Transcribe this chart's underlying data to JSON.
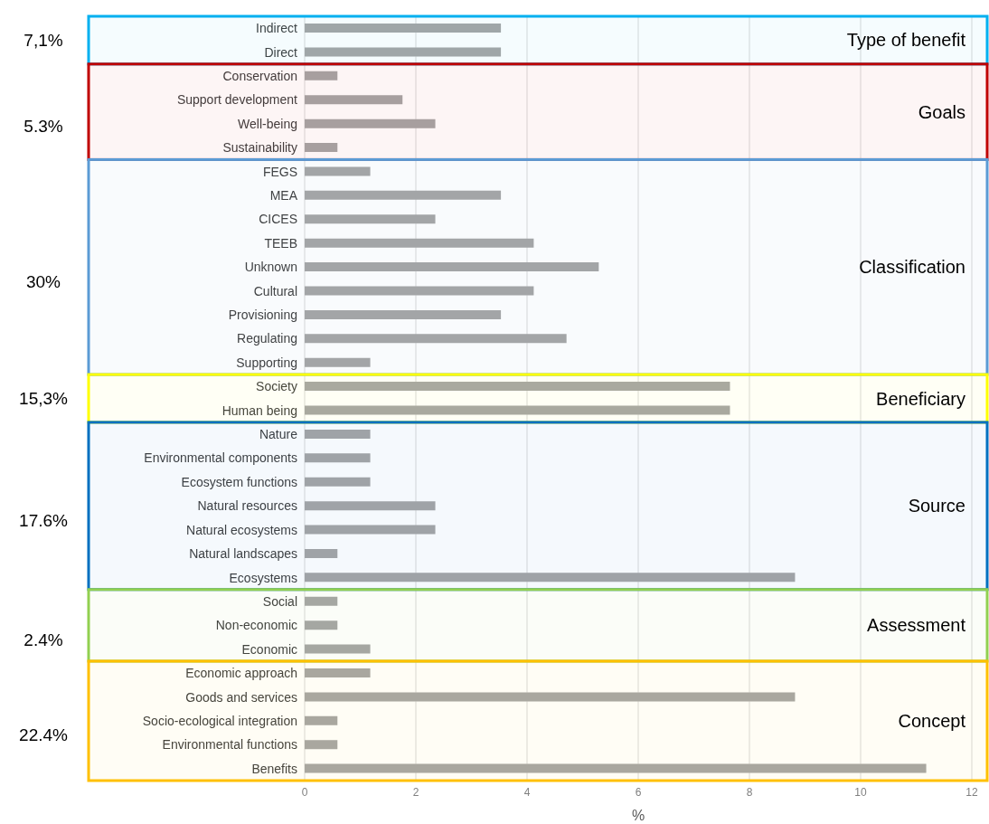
{
  "chart_data": {
    "type": "bar",
    "orientation": "horizontal",
    "xlabel": "%",
    "categories": [
      "Indirect",
      "Direct",
      "Conservation",
      "Support development",
      "Well-being",
      "Sustainability",
      "FEGS",
      "MEA",
      "CICES",
      "TEEB",
      "Unknown",
      "Cultural",
      "Provisioning",
      "Regulating",
      "Supporting",
      "Society",
      "Human being",
      "Nature",
      "Environmental components",
      "Ecosystem functions",
      "Natural resources",
      "Natural ecosystems",
      "Natural landscapes",
      "Ecosystems",
      "Social",
      "Non-economic",
      "Economic",
      "Economic approach",
      "Goods and services",
      "Socio-ecological integration",
      "Environmental functions",
      "Benefits"
    ],
    "values": [
      3.53,
      3.53,
      0.59,
      1.76,
      2.35,
      0.59,
      1.18,
      3.53,
      2.35,
      4.12,
      5.29,
      4.12,
      3.53,
      4.71,
      1.18,
      7.65,
      7.65,
      1.18,
      1.18,
      1.18,
      2.35,
      2.35,
      0.59,
      8.82,
      0.59,
      0.59,
      1.18,
      1.18,
      8.82,
      0.59,
      0.59,
      11.18
    ],
    "color": "#a6a6a6",
    "xlim": [
      0,
      12
    ],
    "xticks": [
      0,
      2,
      4,
      6,
      8,
      10,
      12
    ],
    "grid": "x",
    "legend": false,
    "bands": [
      {
        "axis": "y",
        "from": "Indirect",
        "to": "Direct",
        "label": "Type of benefit",
        "color": "#00b0f0"
      },
      {
        "axis": "y",
        "from": "Conservation",
        "to": "Sustainability",
        "label": "Goals",
        "color": "#c00000"
      },
      {
        "axis": "y",
        "from": "FEGS",
        "to": "Supporting",
        "label": "Classification",
        "color": "#5b9bd5"
      },
      {
        "axis": "y",
        "from": "Society",
        "to": "Human being",
        "label": "Beneficiary",
        "color": "#ffff00"
      },
      {
        "axis": "y",
        "from": "Nature",
        "to": "Ecosystems",
        "label": "Source",
        "color": "#0070c0"
      },
      {
        "axis": "y",
        "from": "Social",
        "to": "Economic",
        "label": "Assessment",
        "color": "#92d050"
      },
      {
        "axis": "y",
        "from": "Economic approach",
        "to": "Benefits",
        "label": "Concept",
        "color": "#ffc000"
      }
    ],
    "annotations": [
      "7,1%",
      "5.3%",
      "30%",
      "15,3%",
      "17.6%",
      "2.4%",
      "22.4%"
    ]
  }
}
